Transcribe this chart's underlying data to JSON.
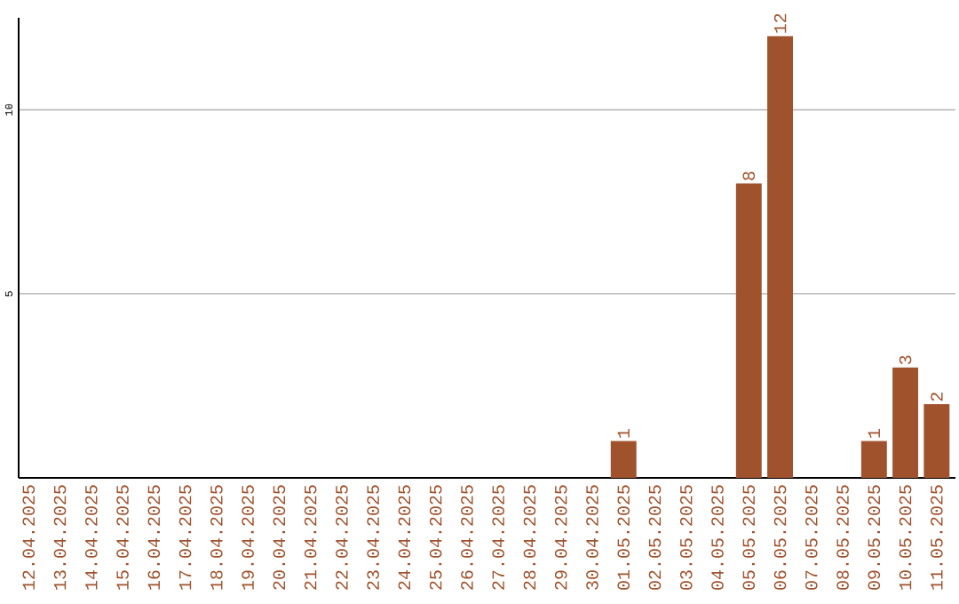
{
  "chart_data": {
    "type": "bar",
    "categories": [
      "12.04.2025",
      "13.04.2025",
      "14.04.2025",
      "15.04.2025",
      "16.04.2025",
      "17.04.2025",
      "18.04.2025",
      "19.04.2025",
      "20.04.2025",
      "21.04.2025",
      "22.04.2025",
      "23.04.2025",
      "24.04.2025",
      "25.04.2025",
      "26.04.2025",
      "27.04.2025",
      "28.04.2025",
      "29.04.2025",
      "30.04.2025",
      "01.05.2025",
      "02.05.2025",
      "03.05.2025",
      "04.05.2025",
      "05.05.2025",
      "06.05.2025",
      "07.05.2025",
      "08.05.2025",
      "09.05.2025",
      "10.05.2025",
      "11.05.2025"
    ],
    "values": [
      0,
      0,
      0,
      0,
      0,
      0,
      0,
      0,
      0,
      0,
      0,
      0,
      0,
      0,
      0,
      0,
      0,
      0,
      0,
      1,
      0,
      0,
      0,
      8,
      12,
      0,
      0,
      1,
      3,
      2
    ],
    "value_labels": [
      null,
      null,
      null,
      null,
      null,
      null,
      null,
      null,
      null,
      null,
      null,
      null,
      null,
      null,
      null,
      null,
      null,
      null,
      null,
      "1",
      null,
      null,
      null,
      "8",
      "12",
      null,
      null,
      "1",
      "3",
      "2"
    ],
    "color": "#a0522d",
    "ylim": [
      0,
      12.5
    ],
    "yticks": [
      5,
      10
    ],
    "grid": "y"
  }
}
